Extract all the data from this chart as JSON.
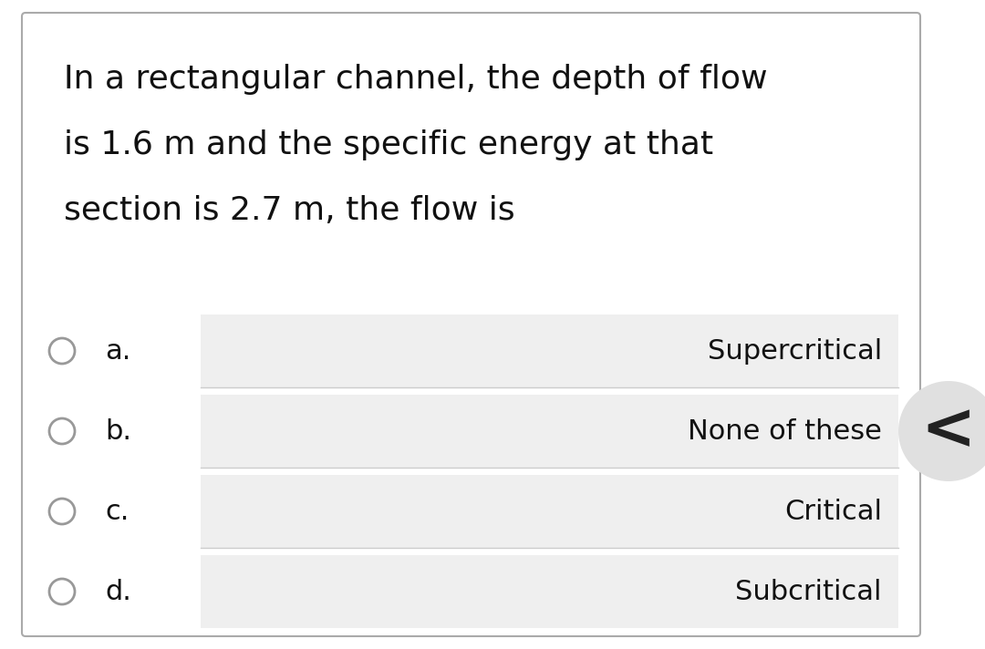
{
  "question_lines": [
    "In a rectangular channel, the depth of flow",
    "is 1.6 m and the specific energy at that",
    "section is 2.7 m, the flow is"
  ],
  "options": [
    {
      "label": "a.",
      "text": "Supercritical"
    },
    {
      "label": "b.",
      "text": "None of these"
    },
    {
      "label": "c.",
      "text": "Critical"
    },
    {
      "label": "d.",
      "text": "Subcritical"
    }
  ],
  "outer_bg": "#ffffff",
  "card_bg": "#ffffff",
  "card_border": "#aaaaaa",
  "option_box_bg": "#efefef",
  "option_sep_color": "#cccccc",
  "text_color": "#111111",
  "question_fontsize": 26,
  "option_label_fontsize": 22,
  "option_text_fontsize": 22,
  "circle_color": "#999999",
  "chevron_bg": "#dddddd",
  "chevron_color": "#222222"
}
